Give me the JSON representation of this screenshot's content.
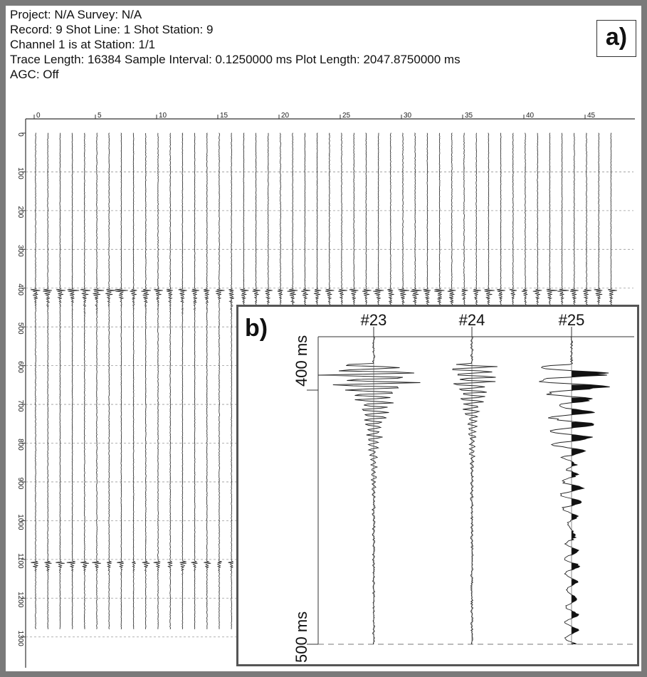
{
  "header": {
    "line1": "Project: N/A   Survey: N/A",
    "line2": "Record: 9   Shot Line: 1   Shot Station: 9",
    "line3": "Channel 1 is at Station: 1/1",
    "line4": "Trace Length: 16384   Sample Interval: 0.1250000 ms   Plot Length: 2047.8750000 ms",
    "line5": "AGC: Off"
  },
  "panel_a": {
    "label": "a)",
    "channel_ticks": [
      "0",
      "5",
      "10",
      "15",
      "20",
      "25",
      "30",
      "35",
      "40",
      "45"
    ],
    "time_ticks": [
      "0",
      "100",
      "200",
      "300",
      "400",
      "500",
      "600",
      "700",
      "800",
      "900",
      "1000",
      "1100",
      "1200",
      "1300"
    ],
    "trace_count": 48,
    "first_arrival_ms": 405,
    "second_event_ms": 1110
  },
  "panel_b": {
    "label": "b)",
    "traces": [
      "#23",
      "#24",
      "#25"
    ],
    "top_label": "400 ms",
    "bottom_label": "500 ms"
  },
  "colors": {
    "trace": "#222222",
    "grid": "#9a9a9a",
    "border": "#555555"
  }
}
